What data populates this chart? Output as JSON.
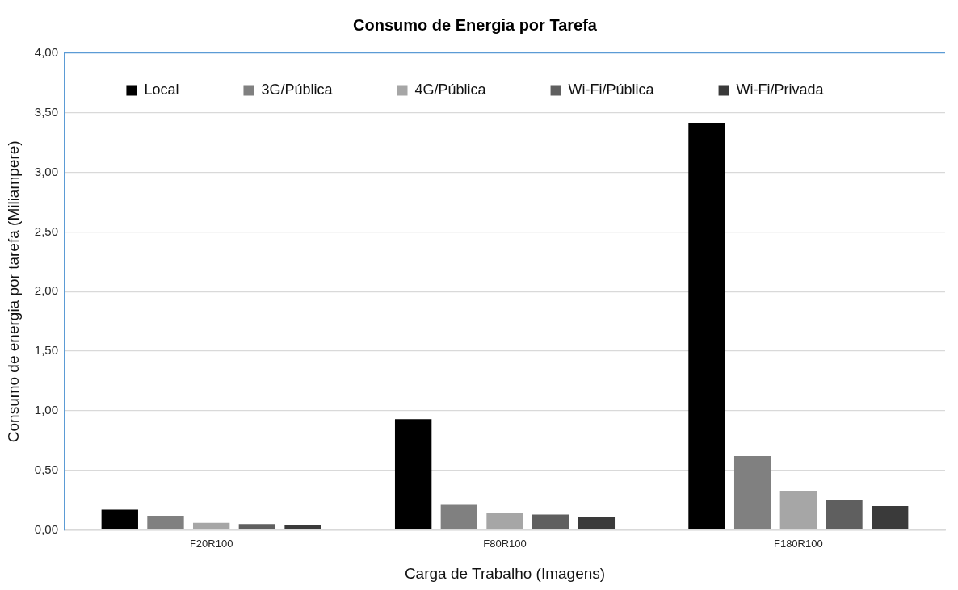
{
  "chart_data": {
    "type": "bar",
    "title": "Consumo de Energia por Tarefa",
    "xlabel": "Carga de Trabalho (Imagens)",
    "ylabel": "Consumo de energia por tarefa (Miliampere)",
    "categories": [
      "F20R100",
      "F80R100",
      "F180R100"
    ],
    "series": [
      {
        "name": "Local",
        "color": "#000000",
        "values": [
          0.17,
          0.93,
          3.41
        ]
      },
      {
        "name": "3G/Pública",
        "color": "#808080",
        "values": [
          0.12,
          0.21,
          0.62
        ]
      },
      {
        "name": "4G/Pública",
        "color": "#a6a6a6",
        "values": [
          0.06,
          0.14,
          0.33
        ]
      },
      {
        "name": "Wi-Fi/Pública",
        "color": "#5f5f5f",
        "values": [
          0.05,
          0.13,
          0.25
        ]
      },
      {
        "name": "Wi-Fi/Privada",
        "color": "#3a3a3a",
        "values": [
          0.04,
          0.11,
          0.2
        ]
      }
    ],
    "ylim": [
      0,
      4
    ],
    "yticks": [
      {
        "value": 0,
        "label": "0,00"
      },
      {
        "value": 0.5,
        "label": "0,50"
      },
      {
        "value": 1,
        "label": "1,00"
      },
      {
        "value": 1.5,
        "label": "1,50"
      },
      {
        "value": 2,
        "label": "2,00"
      },
      {
        "value": 2.5,
        "label": "2,50"
      },
      {
        "value": 3,
        "label": "3,00"
      },
      {
        "value": 3.5,
        "label": "3,50"
      },
      {
        "value": 4,
        "label": "4,00"
      }
    ],
    "grid": "y",
    "legend": "top"
  }
}
